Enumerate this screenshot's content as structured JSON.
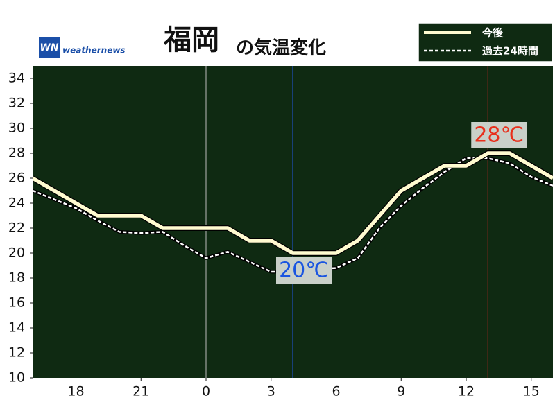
{
  "brand_mark": "WN",
  "brand": "weathernews",
  "chart_data": {
    "type": "line",
    "title": "福岡",
    "subtitle": "の気温変化",
    "x": [
      16,
      17,
      18,
      19,
      20,
      21,
      22,
      23,
      24,
      25,
      26,
      27,
      28,
      29,
      30,
      31,
      32,
      33,
      34,
      35,
      36,
      37,
      38,
      39,
      40
    ],
    "series": [
      {
        "name": "今後",
        "color": "#fffbd0",
        "dashed": false,
        "values": [
          26,
          25,
          24,
          23,
          23,
          23,
          22,
          22,
          22,
          22,
          21,
          21,
          20,
          20,
          20,
          21,
          23,
          25,
          26,
          27,
          27,
          28,
          28,
          27,
          26
        ]
      },
      {
        "name": "過去24時間",
        "color": "#ffffff",
        "dashed": true,
        "values": [
          25,
          24.3,
          23.6,
          22.6,
          21.7,
          21.6,
          21.7,
          20.6,
          19.6,
          20.1,
          19.3,
          18.5,
          18.5,
          18.7,
          18.8,
          19.6,
          22,
          23.8,
          25.2,
          26.5,
          27.6,
          27.6,
          27.2,
          26.1,
          25.4
        ]
      }
    ],
    "xlim": [
      16,
      40
    ],
    "xticks": [
      18,
      21,
      {
        "value": 24,
        "label": "0"
      },
      {
        "value": 27,
        "label": "3"
      },
      {
        "value": 30,
        "label": "6"
      },
      {
        "value": 33,
        "label": "9"
      },
      {
        "value": 36,
        "label": "12"
      },
      {
        "value": 39,
        "label": "15"
      }
    ],
    "ylim": [
      10,
      35
    ],
    "yticks": [
      10,
      12,
      14,
      16,
      18,
      20,
      22,
      24,
      26,
      28,
      30,
      32,
      34
    ],
    "vlines": [
      {
        "x": 24,
        "color": "#bbbbbb"
      },
      {
        "x": 28,
        "color": "#2255dd"
      },
      {
        "x": 37,
        "color": "#cc2222"
      }
    ],
    "annotations": [
      {
        "text": "20℃",
        "x": 28,
        "y": 20,
        "color": "#1a55e0",
        "position": "below"
      },
      {
        "text": "28℃",
        "x": 37,
        "y": 28,
        "color": "#e8301c",
        "position": "above"
      }
    ],
    "legend": "top-right",
    "background": "#0f2a12"
  }
}
